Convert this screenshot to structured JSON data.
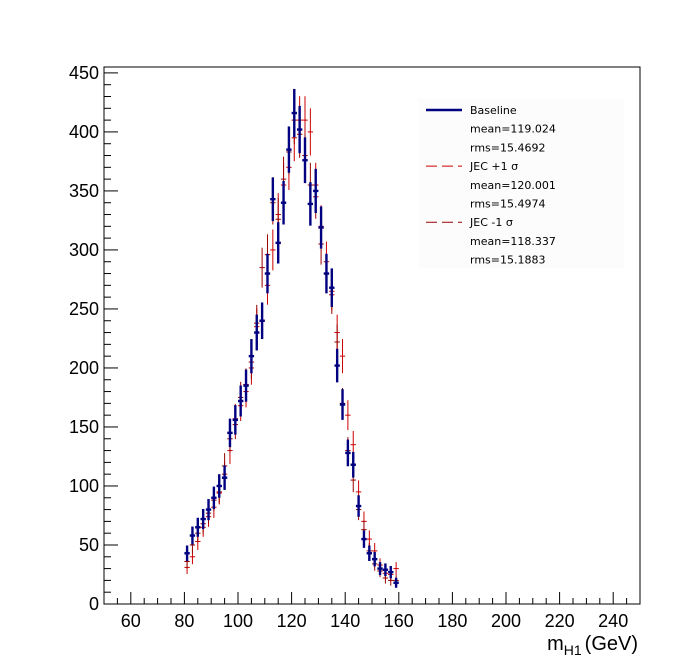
{
  "chart_data": {
    "type": "scatter",
    "title": "",
    "xlabel": "m",
    "xlabel_sub": "H1",
    "xlabel_unit": "(GeV)",
    "ylabel": "",
    "xlim": [
      50,
      250
    ],
    "ylim": [
      0,
      455
    ],
    "x_ticks": [
      60,
      80,
      100,
      120,
      140,
      160,
      180,
      200,
      220,
      240
    ],
    "y_ticks": [
      0,
      50,
      100,
      150,
      200,
      250,
      300,
      350,
      400,
      450
    ],
    "grid": false,
    "legend_position": "top-right",
    "bin_width": 2,
    "colors": {
      "baseline": "#000080",
      "jec_up": "#cc0000",
      "jec_down": "#990000"
    },
    "legend": [
      {
        "label": "Baseline",
        "style": "solid",
        "color": "#000080"
      },
      {
        "label": "mean=119.024"
      },
      {
        "label": "rms=15.4692"
      },
      {
        "label": "JEC +1 σ",
        "style": "dashed",
        "color": "#cc0000"
      },
      {
        "label": "mean=120.001"
      },
      {
        "label": "rms=15.4974"
      },
      {
        "label": "JEC -1 σ",
        "style": "dashed",
        "color": "#990000"
      },
      {
        "label": "mean=118.337"
      },
      {
        "label": "rms=15.1883"
      }
    ],
    "series": [
      {
        "name": "Baseline",
        "x": [
          81,
          83,
          85,
          87,
          89,
          91,
          93,
          95,
          97,
          99,
          101,
          103,
          105,
          107,
          109,
          111,
          113,
          115,
          117,
          119,
          121,
          123,
          125,
          127,
          129,
          131,
          133,
          135,
          137,
          139,
          141,
          143,
          145,
          147,
          149,
          151,
          153,
          155,
          157,
          159
        ],
        "y": [
          43,
          58,
          65,
          72,
          80,
          90,
          100,
          107,
          145,
          156,
          172,
          185,
          210,
          230,
          240,
          280,
          343,
          306,
          340,
          385,
          416,
          402,
          376,
          339,
          350,
          319,
          280,
          268,
          202,
          169,
          128,
          118,
          83,
          55,
          43,
          38,
          30,
          29,
          27,
          18
        ]
      },
      {
        "name": "JEC +1 σ",
        "x": [
          81,
          83,
          85,
          87,
          89,
          91,
          93,
          95,
          97,
          99,
          101,
          103,
          105,
          107,
          109,
          111,
          113,
          115,
          117,
          119,
          121,
          123,
          125,
          127,
          129,
          131,
          133,
          135,
          137,
          139,
          141,
          143,
          145,
          147,
          149,
          151,
          153,
          155,
          157,
          159
        ],
        "y": [
          31,
          40,
          53,
          65,
          74,
          82,
          94,
          110,
          130,
          157,
          168,
          180,
          200,
          235,
          240,
          270,
          300,
          330,
          355,
          370,
          395,
          410,
          410,
          400,
          355,
          320,
          290,
          265,
          230,
          210,
          160,
          135,
          95,
          70,
          55,
          45,
          33,
          26,
          25,
          30
        ]
      },
      {
        "name": "JEC -1 σ",
        "x": [
          81,
          83,
          85,
          87,
          89,
          91,
          93,
          95,
          97,
          99,
          101,
          103,
          105,
          107,
          109,
          111,
          113,
          115,
          117,
          119,
          121,
          123,
          125,
          127,
          129,
          131,
          133,
          135,
          137,
          139,
          141,
          143,
          145,
          147,
          149,
          151,
          153,
          155,
          157,
          159
        ],
        "y": [
          36,
          50,
          60,
          68,
          77,
          88,
          95,
          117,
          140,
          152,
          175,
          186,
          205,
          238,
          285,
          296,
          340,
          326,
          360,
          383,
          410,
          398,
          380,
          355,
          345,
          305,
          280,
          262,
          222,
          170,
          130,
          105,
          80,
          63,
          45,
          34,
          28,
          22,
          20,
          20
        ]
      }
    ]
  }
}
